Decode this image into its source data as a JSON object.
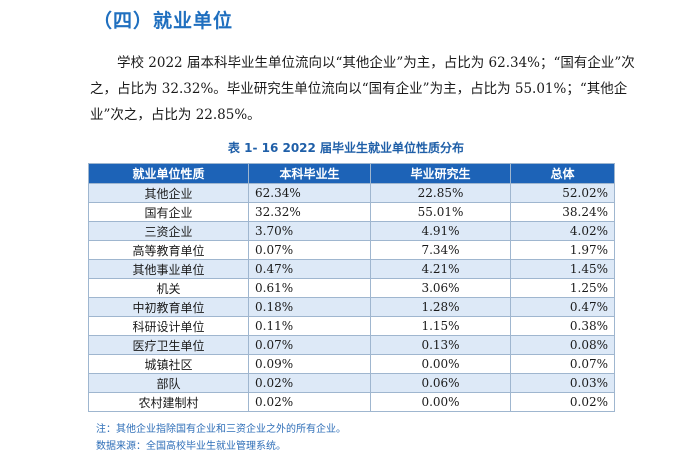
{
  "section_title": "（四）就业单位",
  "paragraph": "学校 2022 届本科毕业生单位流向以“其他企业”为主，占比为 62.34%；“国有企业”次之，占比为 32.32%。毕业研究生单位流向以“国有企业”为主，占比为 55.01%；“其他企业”次之，占比为 22.85%。",
  "caption": "表 1- 16    2022 届毕业生就业单位性质分布",
  "table": {
    "headers": [
      "就业单位性质",
      "本科毕业生",
      "毕业研究生",
      "总体"
    ],
    "rows": [
      [
        "其他企业",
        "62.34%",
        "22.85%",
        "52.02%"
      ],
      [
        "国有企业",
        "32.32%",
        "55.01%",
        "38.24%"
      ],
      [
        "三资企业",
        "3.70%",
        "4.91%",
        "4.02%"
      ],
      [
        "高等教育单位",
        "0.07%",
        "7.34%",
        "1.97%"
      ],
      [
        "其他事业单位",
        "0.47%",
        "4.21%",
        "1.45%"
      ],
      [
        "机关",
        "0.61%",
        "3.06%",
        "1.25%"
      ],
      [
        "中初教育单位",
        "0.18%",
        "1.28%",
        "0.47%"
      ],
      [
        "科研设计单位",
        "0.11%",
        "1.15%",
        "0.38%"
      ],
      [
        "医疗卫生单位",
        "0.07%",
        "0.13%",
        "0.08%"
      ],
      [
        "城镇社区",
        "0.09%",
        "0.00%",
        "0.07%"
      ],
      [
        "部队",
        "0.02%",
        "0.06%",
        "0.03%"
      ],
      [
        "农村建制村",
        "0.02%",
        "0.00%",
        "0.02%"
      ]
    ]
  },
  "notes": {
    "note": "注：其他企业指除国有企业和三资企业之外的所有企业。",
    "source": "数据来源：全国高校毕业生就业管理系统。"
  }
}
